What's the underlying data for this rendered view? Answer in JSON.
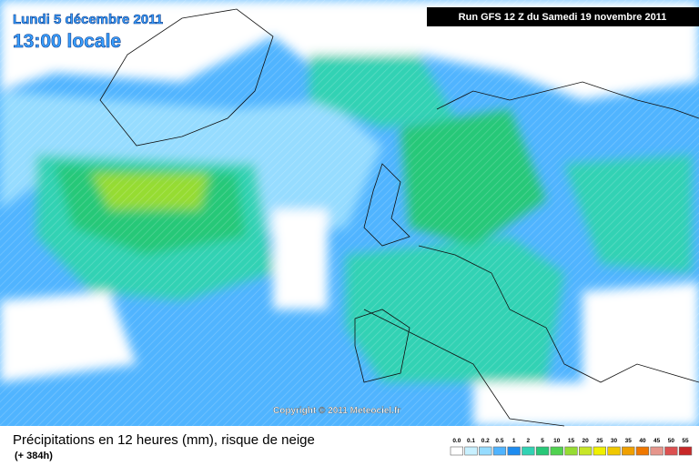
{
  "header": {
    "date": "Lundi 5 décembre 2011",
    "time": "13:00 locale",
    "run": "Run GFS 12 Z du Samedi 19 novembre 2011"
  },
  "copyright": "Copyright © 2011 Meteociel.fr",
  "footer": {
    "title": "Précipitations en 12 heures (mm), risque de neige",
    "lead": "(+ 384h)"
  },
  "legend": [
    {
      "label": "0.0",
      "color": "#ffffff"
    },
    {
      "label": "0.1",
      "color": "#c8f0ff"
    },
    {
      "label": "0.2",
      "color": "#96dcff"
    },
    {
      "label": "0.5",
      "color": "#50b4ff"
    },
    {
      "label": "1",
      "color": "#1e8cf0"
    },
    {
      "label": "2",
      "color": "#32d2b4"
    },
    {
      "label": "5",
      "color": "#28c878"
    },
    {
      "label": "10",
      "color": "#50d250"
    },
    {
      "label": "15",
      "color": "#96dc32"
    },
    {
      "label": "20",
      "color": "#c8e628"
    },
    {
      "label": "25",
      "color": "#f0f000"
    },
    {
      "label": "30",
      "color": "#f0c800"
    },
    {
      "label": "35",
      "color": "#f0a000"
    },
    {
      "label": "40",
      "color": "#f07800"
    },
    {
      "label": "45",
      "color": "#e6968c"
    },
    {
      "label": "50",
      "color": "#dc5050"
    },
    {
      "label": "55",
      "color": "#c82828"
    }
  ]
}
